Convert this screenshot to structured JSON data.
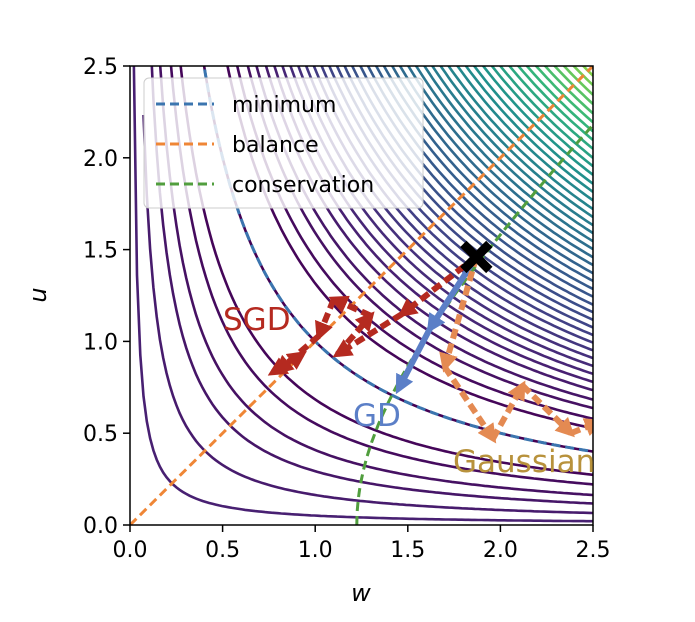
{
  "chart_data": {
    "type": "line",
    "xlabel": "w",
    "ylabel": "u",
    "xlim": [
      0,
      2.5
    ],
    "ylim": [
      0,
      2.5
    ],
    "x_ticks": [
      "0.0",
      "0.5",
      "1.0",
      "1.5",
      "2.0",
      "2.5"
    ],
    "y_ticks": [
      "0.0",
      "0.5",
      "1.0",
      "1.5",
      "2.0",
      "2.5"
    ],
    "background": {
      "type": "contour",
      "function": "(w*u - 1)^2",
      "levels": [
        0.0,
        0.1,
        0.2,
        0.35,
        0.5,
        0.7,
        0.9,
        1.12,
        1.36,
        1.62,
        1.9,
        2.2,
        2.52,
        2.86,
        3.22,
        3.6,
        4.0,
        4.45,
        4.9,
        5.4,
        5.9,
        6.45,
        7.0,
        7.6,
        8.2,
        8.85,
        9.5,
        10.2,
        10.9,
        11.7,
        12.5,
        13.3,
        14.2,
        15.1,
        16.0,
        17.0,
        18.0,
        19.0,
        20.1,
        21.2,
        22.4,
        23.6,
        24.9,
        26.2,
        27.6,
        29.0,
        30.5,
        32.0,
        33.5,
        35.0,
        36.6
      ],
      "colormap": "viridis"
    },
    "series": [
      {
        "name": "minimum",
        "color": "#3b75af",
        "dashed": true,
        "equation": "u = 1/w"
      },
      {
        "name": "balance",
        "color": "#ef8636",
        "dashed": true,
        "equation": "u = w"
      },
      {
        "name": "conservation",
        "color": "#519e3e",
        "dashed": true,
        "equation": "w^2 - u^2 = 1.5"
      }
    ],
    "legend_position": "top-left",
    "start_point": {
      "x": 1.87,
      "y": 1.46,
      "marker": "X"
    },
    "annotations": [
      {
        "text": "SGD",
        "color": "#b52a20"
      },
      {
        "text": "GD",
        "color": "#5b7fc7"
      },
      {
        "text": "Gaussian",
        "color": "#b8923c"
      }
    ],
    "trajectories": {
      "SGD": {
        "color": "#b52a20",
        "points": [
          [
            1.87,
            1.46
          ],
          [
            1.47,
            1.15
          ],
          [
            1.12,
            0.93
          ],
          [
            1.3,
            1.14
          ],
          [
            1.1,
            1.23
          ],
          [
            1.02,
            1.03
          ],
          [
            0.8,
            0.84
          ],
          [
            0.93,
            0.93
          ],
          [
            0.77,
            0.83
          ]
        ]
      },
      "GD": {
        "color": "#5b7fc7",
        "points": [
          [
            1.87,
            1.46
          ],
          [
            1.62,
            1.07
          ],
          [
            1.45,
            0.74
          ]
        ]
      },
      "Gaussian": {
        "color": "#e48a52",
        "points": [
          [
            1.87,
            1.46
          ],
          [
            1.7,
            0.86
          ],
          [
            1.96,
            0.47
          ],
          [
            2.12,
            0.76
          ],
          [
            2.38,
            0.5
          ],
          [
            2.53,
            0.56
          ]
        ]
      }
    }
  }
}
